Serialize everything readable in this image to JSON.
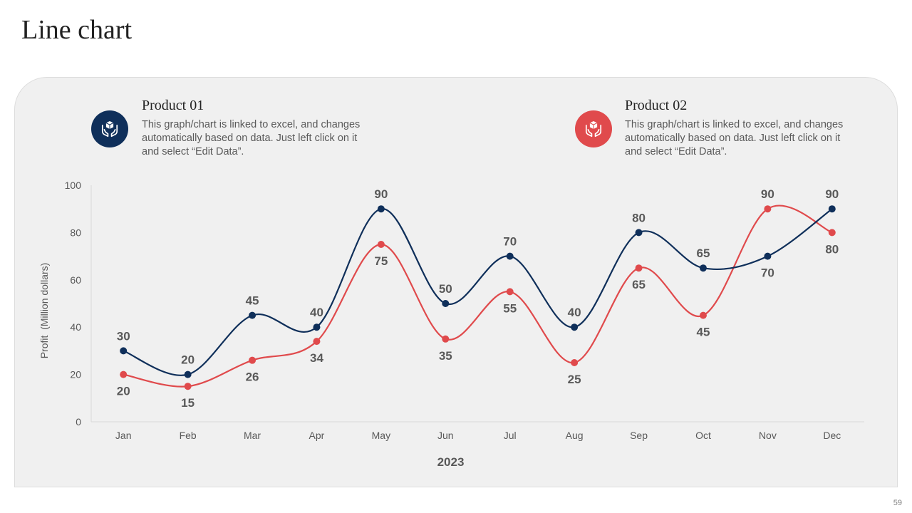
{
  "title": "Line chart",
  "page_number": "59",
  "products": [
    {
      "name": "Product 01",
      "description": "This graph/chart is linked to excel, and changes automatically based on data. Just left click on it and select “Edit Data”.",
      "color": "#0f2f5a",
      "icon": "hands-holding-box-icon"
    },
    {
      "name": "Product 02",
      "description": "This graph/chart is linked to excel, and changes automatically based on data. Just left click on it and select “Edit Data”.",
      "color": "#e04a4c",
      "icon": "hands-holding-box-icon"
    }
  ],
  "chart_data": {
    "type": "line",
    "categories": [
      "Jan",
      "Feb",
      "Mar",
      "Apr",
      "May",
      "Jun",
      "Jul",
      "Aug",
      "Sep",
      "Oct",
      "Nov",
      "Dec"
    ],
    "series": [
      {
        "name": "Product 01",
        "color": "#0f2f5a",
        "values": [
          30,
          20,
          45,
          40,
          90,
          50,
          70,
          40,
          80,
          65,
          70,
          90
        ]
      },
      {
        "name": "Product 02",
        "color": "#e04a4c",
        "values": [
          20,
          15,
          26,
          34,
          75,
          35,
          55,
          25,
          65,
          45,
          90,
          80
        ]
      }
    ],
    "xlabel": "2023",
    "ylabel": "Profit  (Million dollars)",
    "ylim": [
      0,
      100
    ],
    "yticks": [
      0,
      20,
      40,
      60,
      80,
      100
    ],
    "smooth": true,
    "grid": false
  }
}
